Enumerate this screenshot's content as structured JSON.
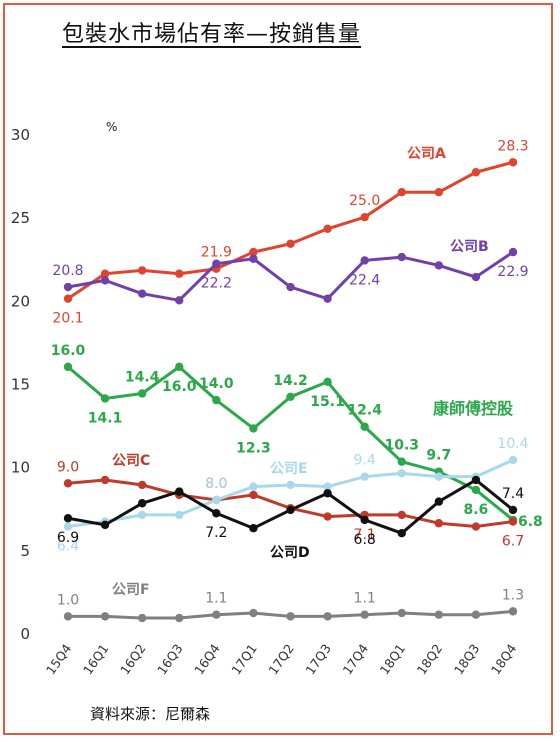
{
  "page": {
    "title": "包裝水市場佔有率—按銷售量",
    "source": "資料來源：尼爾森"
  },
  "chart_data": {
    "type": "line",
    "title": "包裝水市場佔有率—按銷售量",
    "ylabel": "%",
    "xlabel": "",
    "ylim": [
      0,
      30
    ],
    "yticks": [
      "0",
      "5",
      "10",
      "15",
      "20",
      "25",
      "30"
    ],
    "grid": false,
    "categories": [
      "15Q4",
      "16Q1",
      "16Q2",
      "16Q3",
      "16Q4",
      "17Q1",
      "17Q2",
      "17Q3",
      "17Q4",
      "18Q1",
      "18Q2",
      "18Q3",
      "18Q4"
    ],
    "series": [
      {
        "name": "公司A",
        "color": "#e0442e",
        "values": [
          20.1,
          21.6,
          21.8,
          21.6,
          21.9,
          22.9,
          23.4,
          24.3,
          25.0,
          26.5,
          26.5,
          27.7,
          28.3
        ],
        "labels": [
          {
            "i": 0,
            "text": "20.1",
            "pos": "below"
          },
          {
            "i": 4,
            "text": "21.9",
            "pos": "above"
          },
          {
            "i": 8,
            "text": "25.0",
            "pos": "above"
          },
          {
            "i": 12,
            "text": "28.3",
            "pos": "above"
          }
        ]
      },
      {
        "name": "公司B",
        "color": "#7140a8",
        "values": [
          20.8,
          21.2,
          20.4,
          20.0,
          22.2,
          22.5,
          20.8,
          20.1,
          22.4,
          22.6,
          22.1,
          21.4,
          22.9
        ],
        "labels": [
          {
            "i": 0,
            "text": "20.8",
            "pos": "above"
          },
          {
            "i": 4,
            "text": "22.2",
            "pos": "below"
          },
          {
            "i": 8,
            "text": "22.4",
            "pos": "below"
          },
          {
            "i": 12,
            "text": "22.9",
            "pos": "below"
          }
        ]
      },
      {
        "name": "康師傅控股",
        "color": "#2aa84a",
        "values": [
          16.0,
          14.1,
          14.4,
          16.0,
          14.0,
          12.3,
          14.2,
          15.1,
          12.4,
          10.3,
          9.7,
          8.6,
          6.8
        ],
        "labels": [
          {
            "i": 0,
            "text": "16.0",
            "pos": "above"
          },
          {
            "i": 1,
            "text": "14.1",
            "pos": "below"
          },
          {
            "i": 2,
            "text": "14.4",
            "pos": "above"
          },
          {
            "i": 3,
            "text": "16.0",
            "pos": "below"
          },
          {
            "i": 4,
            "text": "14.0",
            "pos": "above"
          },
          {
            "i": 5,
            "text": "12.3",
            "pos": "below"
          },
          {
            "i": 6,
            "text": "14.2",
            "pos": "above"
          },
          {
            "i": 7,
            "text": "15.1",
            "pos": "below"
          },
          {
            "i": 8,
            "text": "12.4",
            "pos": "above"
          },
          {
            "i": 9,
            "text": "10.3",
            "pos": "above"
          },
          {
            "i": 10,
            "text": "9.7",
            "pos": "above"
          },
          {
            "i": 11,
            "text": "8.6",
            "pos": "below"
          },
          {
            "i": 12,
            "text": "6.8",
            "pos": "right"
          }
        ]
      },
      {
        "name": "公司C",
        "color": "#c0392b",
        "values": [
          9.0,
          9.2,
          8.9,
          8.3,
          8.0,
          8.3,
          7.5,
          7.0,
          7.1,
          7.1,
          6.6,
          6.4,
          6.7
        ],
        "labels": [
          {
            "i": 0,
            "text": "9.0",
            "pos": "above"
          },
          {
            "i": 4,
            "text": "8.0",
            "pos": "above"
          },
          {
            "i": 8,
            "text": "7.1",
            "pos": "below"
          },
          {
            "i": 12,
            "text": "6.7",
            "pos": "below"
          }
        ]
      },
      {
        "name": "公司E",
        "color": "#a8d8ea",
        "values": [
          6.4,
          6.7,
          7.1,
          7.1,
          8.0,
          8.8,
          8.9,
          8.8,
          9.4,
          9.6,
          9.4,
          9.4,
          10.4
        ],
        "labels": [
          {
            "i": 0,
            "text": "6.4",
            "pos": "below"
          },
          {
            "i": 4,
            "text": "8.0",
            "pos": "above"
          },
          {
            "i": 8,
            "text": "9.4",
            "pos": "above"
          },
          {
            "i": 12,
            "text": "10.4",
            "pos": "above"
          }
        ]
      },
      {
        "name": "公司D",
        "color": "#111111",
        "values": [
          6.9,
          6.5,
          7.8,
          8.5,
          7.2,
          6.3,
          7.4,
          8.4,
          6.8,
          6.0,
          7.9,
          9.2,
          7.4
        ],
        "labels": [
          {
            "i": 0,
            "text": "6.9",
            "pos": "below"
          },
          {
            "i": 4,
            "text": "7.2",
            "pos": "below"
          },
          {
            "i": 8,
            "text": "6.8",
            "pos": "below"
          },
          {
            "i": 12,
            "text": "7.4",
            "pos": "above"
          }
        ]
      },
      {
        "name": "公司F",
        "color": "#808080",
        "values": [
          1.0,
          1.0,
          0.9,
          0.9,
          1.1,
          1.2,
          1.0,
          1.0,
          1.1,
          1.2,
          1.1,
          1.1,
          1.3
        ],
        "labels": [
          {
            "i": 0,
            "text": "1.0",
            "pos": "above"
          },
          {
            "i": 4,
            "text": "1.1",
            "pos": "above"
          },
          {
            "i": 8,
            "text": "1.1",
            "pos": "above"
          },
          {
            "i": 12,
            "text": "1.3",
            "pos": "above"
          }
        ]
      }
    ]
  }
}
